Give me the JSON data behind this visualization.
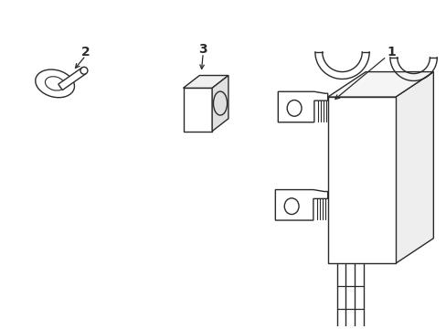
{
  "background_color": "#ffffff",
  "line_color": "#2a2a2a",
  "line_width": 1.0,
  "label_fontsize": 10,
  "label_fontweight": "bold",
  "fig_w": 4.89,
  "fig_h": 3.6,
  "dpi": 100
}
